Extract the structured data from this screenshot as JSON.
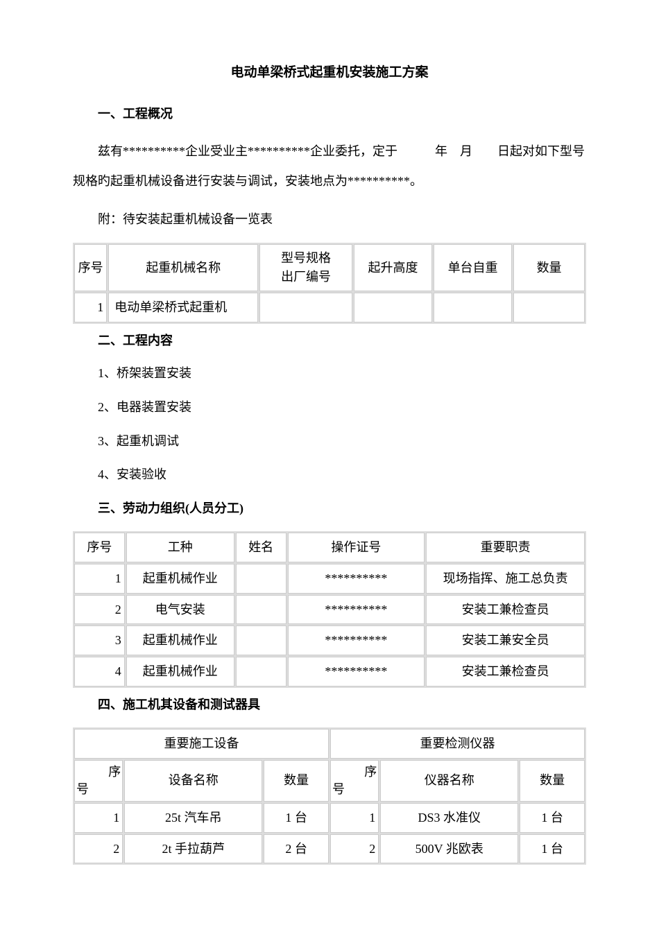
{
  "title": "电动单梁桥式起重机安装施工方案",
  "s1": {
    "heading": "一、工程概况",
    "para": "兹有**********企业受业主**********企业委托，定于   年 月  日起对如下型号规格旳起重机械设备进行安装与调试，安装地点为**********。",
    "attach": "附：待安装起重机械设备一览表"
  },
  "table1": {
    "headers": {
      "seq": "序号",
      "name": "起重机械名称",
      "model_line1": "型号规格",
      "model_line2": "出厂编号",
      "height": "起升高度",
      "weight": "单台自重",
      "qty": "数量"
    },
    "rows": [
      {
        "seq": "1",
        "name": "电动单梁桥式起重机",
        "model": "",
        "height": "",
        "weight": "",
        "qty": ""
      }
    ]
  },
  "s2": {
    "heading": "二、工程内容",
    "items": [
      "1、桥架装置安装",
      "2、电器装置安装",
      "3、起重机调试",
      "4、安装验收"
    ]
  },
  "s3": {
    "heading": "三、劳动力组织(人员分工)"
  },
  "table2": {
    "headers": {
      "seq": "序号",
      "type": "工种",
      "name": "姓名",
      "cert": "操作证号",
      "duty": "重要职责"
    },
    "rows": [
      {
        "seq": "1",
        "type": "起重机械作业",
        "name": "",
        "cert": "**********",
        "duty": "现场指挥、施工总负责"
      },
      {
        "seq": "2",
        "type": "电气安装",
        "name": "",
        "cert": "**********",
        "duty": "安装工兼检查员"
      },
      {
        "seq": "3",
        "type": "起重机械作业",
        "name": "",
        "cert": "**********",
        "duty": "安装工兼安全员"
      },
      {
        "seq": "4",
        "type": "起重机械作业",
        "name": "",
        "cert": "**********",
        "duty": "安装工兼检查员"
      }
    ]
  },
  "s4": {
    "heading": "四、施工机其设备和测试器具"
  },
  "table3": {
    "group_left": "重要施工设备",
    "group_right": "重要检测仪器",
    "headers": {
      "seq_l_a": "序",
      "seq_l_b": "号",
      "name_l": "设备名称",
      "qty_l": "数量",
      "seq_r_a": "序",
      "seq_r_b": "号",
      "name_r": "仪器名称",
      "qty_r": "数量"
    },
    "rows": [
      {
        "seq_l": "1",
        "name_l": "25t 汽车吊",
        "qty_l": "1 台",
        "seq_r": "1",
        "name_r": "DS3 水准仪",
        "qty_r": "1 台"
      },
      {
        "seq_l": "2",
        "name_l": "2t 手拉葫芦",
        "qty_l": "2 台",
        "seq_r": "2",
        "name_r": "500V 兆欧表",
        "qty_r": "1 台"
      }
    ]
  }
}
